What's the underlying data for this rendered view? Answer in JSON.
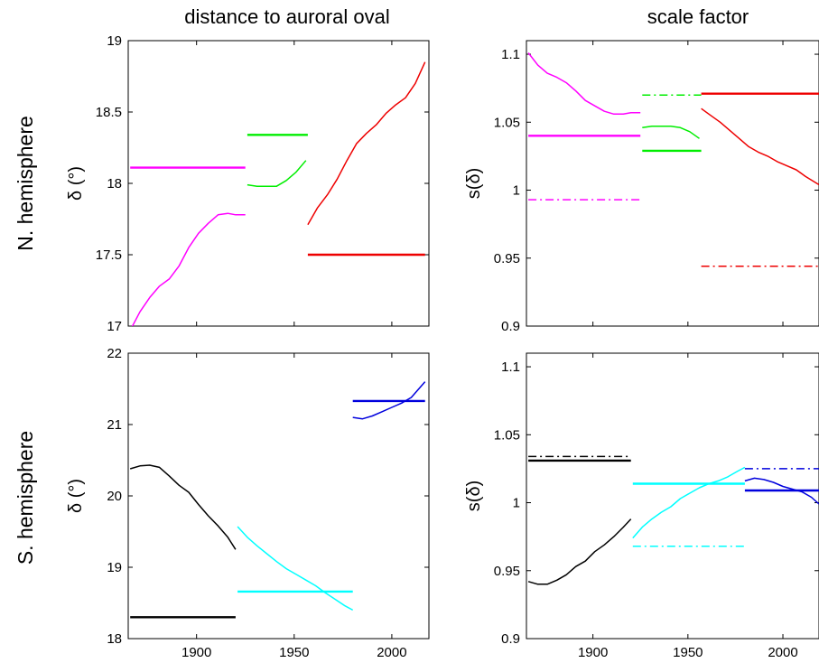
{
  "column_titles": [
    "distance to auroral oval",
    "scale factor"
  ],
  "row_labels": [
    "N. hemisphere",
    "S. hemisphere"
  ],
  "chart_data": [
    {
      "type": "line",
      "panel": "N. hemisphere / distance to auroral oval",
      "title": "distance to auroral oval",
      "ylabel": "δ (°)",
      "xlim": [
        1865,
        2019
      ],
      "ylim": [
        17,
        19
      ],
      "xticks": [
        1900,
        1950,
        2000
      ],
      "yticks": [
        17,
        17.5,
        18,
        18.5,
        19
      ],
      "ytick_labels": [
        "17",
        "17.5",
        "18",
        "18.5",
        "19"
      ],
      "xtick_labels": [],
      "series": [
        {
          "color": "#ff00ff",
          "style": "solid",
          "x": [
            1866,
            1871,
            1876,
            1881,
            1886,
            1891,
            1896,
            1901,
            1906,
            1911,
            1916,
            1920,
            1925
          ],
          "y": [
            16.97,
            17.1,
            17.2,
            17.28,
            17.33,
            17.42,
            17.55,
            17.65,
            17.72,
            17.78,
            17.79,
            17.78,
            17.78
          ]
        },
        {
          "color": "#ff00ff",
          "style": "solid",
          "x": [
            1866,
            1925
          ],
          "y": [
            18.11,
            18.11
          ]
        },
        {
          "color": "#00ee00",
          "style": "solid",
          "x": [
            1926,
            1931,
            1936,
            1941,
            1946,
            1951,
            1956
          ],
          "y": [
            17.99,
            17.98,
            17.98,
            17.98,
            18.02,
            18.08,
            18.16
          ]
        },
        {
          "color": "#00ee00",
          "style": "solid",
          "x": [
            1926,
            1957
          ],
          "y": [
            18.34,
            18.34
          ]
        },
        {
          "color": "#ee0000",
          "style": "solid",
          "x": [
            1957,
            1962,
            1967,
            1972,
            1977,
            1982,
            1987,
            1992,
            1997,
            2002,
            2007,
            2012,
            2017
          ],
          "y": [
            17.71,
            17.83,
            17.92,
            18.03,
            18.16,
            18.28,
            18.35,
            18.41,
            18.49,
            18.55,
            18.6,
            18.7,
            18.85
          ]
        },
        {
          "color": "#ee0000",
          "style": "solid",
          "x": [
            1957,
            2017
          ],
          "y": [
            17.5,
            17.5
          ]
        }
      ]
    },
    {
      "type": "line",
      "panel": "N. hemisphere / scale factor",
      "title": "scale factor",
      "ylabel": "s(δ)",
      "xlim": [
        1865,
        2019
      ],
      "ylim": [
        0.9,
        1.11
      ],
      "xticks": [
        1900,
        1950,
        2000
      ],
      "yticks": [
        0.9,
        0.95,
        1,
        1.05,
        1.1
      ],
      "ytick_labels": [
        "0.9",
        "0.95",
        "1",
        "1.05",
        "1.1"
      ],
      "xtick_labels": [],
      "series": [
        {
          "color": "#ff00ff",
          "style": "solid",
          "x": [
            1866,
            1871,
            1876,
            1881,
            1886,
            1891,
            1896,
            1901,
            1906,
            1911,
            1916,
            1920,
            1925
          ],
          "y": [
            1.101,
            1.092,
            1.086,
            1.083,
            1.079,
            1.073,
            1.066,
            1.062,
            1.058,
            1.056,
            1.056,
            1.057,
            1.057
          ]
        },
        {
          "color": "#ff00ff",
          "style": "solid",
          "x": [
            1866,
            1925
          ],
          "y": [
            1.04,
            1.04
          ]
        },
        {
          "color": "#ff00ff",
          "style": "dashdot",
          "x": [
            1866,
            1925
          ],
          "y": [
            0.993,
            0.993
          ]
        },
        {
          "color": "#00ee00",
          "style": "solid",
          "x": [
            1926,
            1931,
            1936,
            1941,
            1946,
            1951,
            1956
          ],
          "y": [
            1.046,
            1.047,
            1.047,
            1.047,
            1.046,
            1.043,
            1.038
          ]
        },
        {
          "color": "#00ee00",
          "style": "solid",
          "x": [
            1926,
            1957
          ],
          "y": [
            1.029,
            1.029
          ]
        },
        {
          "color": "#00ee00",
          "style": "dashdot",
          "x": [
            1926,
            1957
          ],
          "y": [
            1.07,
            1.07
          ]
        },
        {
          "color": "#ee0000",
          "style": "solid",
          "x": [
            1957,
            1962,
            1967,
            1972,
            1977,
            1982,
            1987,
            1992,
            1997,
            2002,
            2007,
            2012,
            2019
          ],
          "y": [
            1.06,
            1.055,
            1.05,
            1.044,
            1.038,
            1.032,
            1.028,
            1.025,
            1.021,
            1.018,
            1.015,
            1.01,
            1.004
          ]
        },
        {
          "color": "#ee0000",
          "style": "solid",
          "x": [
            1957,
            2019
          ],
          "y": [
            1.071,
            1.071
          ]
        },
        {
          "color": "#ee0000",
          "style": "dashdot",
          "x": [
            1957,
            2019
          ],
          "y": [
            0.944,
            0.944
          ]
        }
      ]
    },
    {
      "type": "line",
      "panel": "S. hemisphere / distance to auroral oval",
      "ylabel": "δ (°)",
      "xlim": [
        1865,
        2019
      ],
      "ylim": [
        18,
        22
      ],
      "xticks": [
        1900,
        1950,
        2000
      ],
      "yticks": [
        18,
        19,
        20,
        21,
        22
      ],
      "ytick_labels": [
        "18",
        "19",
        "20",
        "21",
        "22"
      ],
      "xtick_labels": [
        "1900",
        "1950",
        "2000"
      ],
      "series": [
        {
          "color": "#000000",
          "style": "solid",
          "x": [
            1866,
            1871,
            1876,
            1881,
            1886,
            1891,
            1896,
            1901,
            1906,
            1911,
            1916,
            1920
          ],
          "y": [
            20.38,
            20.42,
            20.43,
            20.4,
            20.28,
            20.15,
            20.05,
            19.88,
            19.72,
            19.58,
            19.42,
            19.25
          ]
        },
        {
          "color": "#000000",
          "style": "solid",
          "x": [
            1866,
            1920
          ],
          "y": [
            18.3,
            18.3
          ]
        },
        {
          "color": "#00ffff",
          "style": "solid",
          "x": [
            1921,
            1926,
            1931,
            1936,
            1941,
            1946,
            1951,
            1956,
            1961,
            1966,
            1971,
            1976,
            1980
          ],
          "y": [
            19.57,
            19.42,
            19.3,
            19.19,
            19.08,
            18.98,
            18.9,
            18.82,
            18.74,
            18.64,
            18.55,
            18.46,
            18.4
          ]
        },
        {
          "color": "#00ffff",
          "style": "solid",
          "x": [
            1921,
            1980
          ],
          "y": [
            18.66,
            18.66
          ]
        },
        {
          "color": "#0000dd",
          "style": "solid",
          "x": [
            1980,
            1985,
            1990,
            1995,
            2000,
            2005,
            2010,
            2017
          ],
          "y": [
            21.1,
            21.08,
            21.12,
            21.18,
            21.24,
            21.3,
            21.38,
            21.6
          ]
        },
        {
          "color": "#0000dd",
          "style": "solid",
          "x": [
            1980,
            2017
          ],
          "y": [
            21.33,
            21.33
          ]
        }
      ]
    },
    {
      "type": "line",
      "panel": "S. hemisphere / scale factor",
      "ylabel": "s(δ)",
      "xlim": [
        1865,
        2019
      ],
      "ylim": [
        0.9,
        1.11
      ],
      "xticks": [
        1900,
        1950,
        2000
      ],
      "yticks": [
        0.9,
        0.95,
        1,
        1.05,
        1.1
      ],
      "ytick_labels": [
        "0.9",
        "0.95",
        "1",
        "1.05",
        "1.1"
      ],
      "xtick_labels": [
        "1900",
        "1950",
        "2000"
      ],
      "series": [
        {
          "color": "#000000",
          "style": "solid",
          "x": [
            1866,
            1871,
            1876,
            1881,
            1886,
            1891,
            1896,
            1901,
            1906,
            1911,
            1916,
            1920
          ],
          "y": [
            0.942,
            0.94,
            0.94,
            0.943,
            0.947,
            0.953,
            0.957,
            0.964,
            0.969,
            0.975,
            0.982,
            0.988
          ]
        },
        {
          "color": "#000000",
          "style": "solid",
          "x": [
            1866,
            1920
          ],
          "y": [
            1.031,
            1.031
          ]
        },
        {
          "color": "#000000",
          "style": "dashdot",
          "x": [
            1866,
            1920
          ],
          "y": [
            1.034,
            1.034
          ]
        },
        {
          "color": "#00ffff",
          "style": "solid",
          "x": [
            1921,
            1926,
            1931,
            1936,
            1941,
            1946,
            1951,
            1956,
            1961,
            1966,
            1971,
            1976,
            1980
          ],
          "y": [
            0.974,
            0.982,
            0.988,
            0.993,
            0.997,
            1.003,
            1.007,
            1.011,
            1.014,
            1.016,
            1.019,
            1.023,
            1.026
          ]
        },
        {
          "color": "#00ffff",
          "style": "solid",
          "x": [
            1921,
            1980
          ],
          "y": [
            1.014,
            1.014
          ]
        },
        {
          "color": "#00ffff",
          "style": "dashdot",
          "x": [
            1921,
            1980
          ],
          "y": [
            0.968,
            0.968
          ]
        },
        {
          "color": "#0000dd",
          "style": "solid",
          "x": [
            1980,
            1985,
            1990,
            1995,
            2000,
            2005,
            2010,
            2015,
            2019
          ],
          "y": [
            1.016,
            1.018,
            1.017,
            1.015,
            1.012,
            1.01,
            1.008,
            1.004,
            0.999
          ]
        },
        {
          "color": "#0000dd",
          "style": "solid",
          "x": [
            1980,
            2019
          ],
          "y": [
            1.009,
            1.009
          ]
        },
        {
          "color": "#0000dd",
          "style": "dashdot",
          "x": [
            1980,
            2019
          ],
          "y": [
            1.025,
            1.025
          ]
        }
      ]
    }
  ]
}
